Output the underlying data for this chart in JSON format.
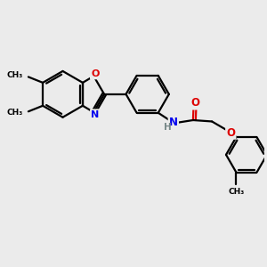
{
  "background_color": "#ebebeb",
  "bond_color": "#000000",
  "N_color": "#0000ee",
  "O_color": "#dd0000",
  "H_color": "#778888",
  "figsize": [
    3.0,
    3.0
  ],
  "dpi": 100,
  "xlim": [
    0,
    10
  ],
  "ylim": [
    0,
    10
  ]
}
